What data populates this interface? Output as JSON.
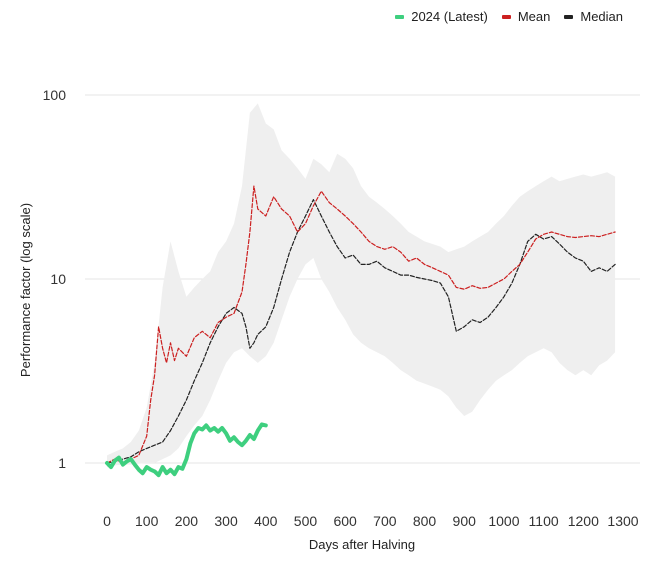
{
  "chart_data": {
    "type": "line",
    "xlabel": "Days after Halving",
    "ylabel": "Performance factor (log scale)",
    "y_scale": "log",
    "xlim": [
      0,
      1300
    ],
    "ylim": [
      0.55,
      130
    ],
    "x_ticks": [
      0,
      100,
      200,
      300,
      400,
      500,
      600,
      700,
      800,
      900,
      1000,
      1100,
      1200,
      1300
    ],
    "y_ticks": [
      1,
      10,
      100
    ],
    "y_tick_labels": [
      "1",
      "10",
      "100"
    ],
    "grid": "horizontal",
    "legend_position": "top-right",
    "series": [
      {
        "name": "2024 (Latest)",
        "color": "#3ecf7f",
        "style": "solid",
        "x": [
          0,
          10,
          20,
          30,
          40,
          50,
          60,
          70,
          80,
          90,
          100,
          110,
          120,
          130,
          140,
          150,
          160,
          170,
          180,
          190,
          200,
          210,
          220,
          230,
          240,
          250,
          260,
          270,
          280,
          290,
          300,
          310,
          320,
          330,
          340,
          350,
          360,
          370,
          380,
          390,
          400
        ],
        "values": [
          1.0,
          0.95,
          1.03,
          1.07,
          0.98,
          1.02,
          1.05,
          0.98,
          0.92,
          0.88,
          0.95,
          0.92,
          0.9,
          0.86,
          0.95,
          0.88,
          0.92,
          0.87,
          0.95,
          0.93,
          1.05,
          1.28,
          1.45,
          1.55,
          1.52,
          1.6,
          1.5,
          1.55,
          1.48,
          1.55,
          1.45,
          1.32,
          1.38,
          1.3,
          1.25,
          1.32,
          1.42,
          1.35,
          1.5,
          1.62,
          1.6
        ]
      },
      {
        "name": "Mean",
        "color": "#cc2020",
        "style": "dashed",
        "x": [
          0,
          20,
          40,
          60,
          80,
          100,
          110,
          120,
          130,
          140,
          150,
          160,
          170,
          180,
          200,
          220,
          240,
          260,
          280,
          300,
          320,
          340,
          350,
          360,
          370,
          380,
          400,
          420,
          440,
          460,
          480,
          500,
          520,
          540,
          560,
          580,
          600,
          620,
          640,
          660,
          680,
          700,
          720,
          740,
          760,
          780,
          800,
          820,
          840,
          860,
          880,
          900,
          920,
          940,
          960,
          980,
          1000,
          1020,
          1040,
          1060,
          1080,
          1100,
          1120,
          1140,
          1160,
          1180,
          1200,
          1220,
          1240,
          1260,
          1280
        ],
        "values": [
          1.0,
          1.05,
          1.0,
          1.05,
          1.1,
          1.4,
          2.2,
          3.0,
          5.5,
          4.2,
          3.5,
          4.5,
          3.6,
          4.2,
          3.8,
          4.8,
          5.2,
          4.8,
          5.8,
          6.2,
          6.5,
          8.5,
          12.0,
          18.0,
          32.0,
          24.0,
          22.0,
          28.0,
          24.0,
          22.0,
          18.0,
          20.0,
          25.0,
          30.0,
          26.0,
          24.0,
          22.0,
          20.0,
          18.0,
          16.0,
          15.0,
          14.5,
          15.0,
          14.0,
          12.5,
          13.0,
          12.0,
          11.5,
          11.0,
          10.5,
          9.0,
          8.8,
          9.2,
          8.9,
          9.0,
          9.5,
          10.0,
          11.0,
          12.0,
          14.0,
          16.5,
          17.5,
          18.0,
          17.5,
          17.0,
          16.8,
          17.0,
          17.2,
          17.0,
          17.5,
          18.0
        ]
      },
      {
        "name": "Median",
        "color": "#222222",
        "style": "dashed",
        "x": [
          0,
          20,
          40,
          60,
          80,
          100,
          120,
          140,
          160,
          180,
          200,
          220,
          240,
          260,
          280,
          300,
          320,
          340,
          350,
          360,
          370,
          380,
          400,
          420,
          440,
          460,
          480,
          500,
          520,
          540,
          560,
          580,
          600,
          620,
          640,
          660,
          680,
          700,
          720,
          740,
          760,
          780,
          800,
          820,
          840,
          860,
          880,
          900,
          920,
          940,
          960,
          980,
          1000,
          1020,
          1040,
          1060,
          1080,
          1100,
          1120,
          1140,
          1160,
          1180,
          1200,
          1220,
          1240,
          1260,
          1280
        ],
        "values": [
          1.0,
          1.02,
          1.05,
          1.08,
          1.15,
          1.2,
          1.25,
          1.3,
          1.5,
          1.8,
          2.2,
          2.8,
          3.5,
          4.5,
          5.5,
          6.5,
          7.0,
          6.5,
          5.5,
          4.2,
          4.5,
          5.0,
          5.5,
          7.0,
          10.0,
          14.0,
          18.0,
          22.0,
          27.0,
          22.0,
          18.0,
          15.0,
          13.0,
          13.5,
          12.0,
          12.0,
          12.5,
          11.5,
          11.0,
          10.5,
          10.5,
          10.2,
          10.0,
          9.8,
          9.5,
          8.0,
          5.2,
          5.5,
          6.0,
          5.8,
          6.2,
          7.0,
          8.0,
          9.5,
          12.0,
          16.0,
          17.5,
          16.5,
          17.0,
          15.5,
          14.0,
          13.0,
          12.5,
          11.0,
          11.5,
          11.0,
          12.0
        ]
      },
      {
        "name": "Range",
        "color": "#efefef",
        "style": "band",
        "x": [
          0,
          20,
          40,
          60,
          80,
          100,
          120,
          140,
          160,
          180,
          200,
          220,
          240,
          260,
          280,
          300,
          320,
          340,
          360,
          380,
          400,
          420,
          440,
          460,
          480,
          500,
          520,
          540,
          560,
          580,
          600,
          620,
          640,
          660,
          680,
          700,
          720,
          740,
          760,
          780,
          800,
          820,
          840,
          860,
          880,
          900,
          920,
          940,
          960,
          980,
          1000,
          1020,
          1040,
          1060,
          1080,
          1100,
          1120,
          1140,
          1160,
          1180,
          1200,
          1220,
          1240,
          1260,
          1280
        ],
        "lower": [
          0.95,
          0.97,
          0.98,
          0.98,
          0.99,
          1.0,
          1.0,
          1.05,
          1.1,
          1.2,
          1.4,
          1.6,
          1.8,
          2.2,
          2.8,
          3.5,
          4.0,
          4.2,
          3.8,
          3.5,
          3.8,
          4.5,
          6.0,
          8.0,
          10.0,
          12.0,
          13.0,
          10.0,
          8.5,
          7.0,
          6.0,
          5.0,
          4.5,
          4.2,
          4.0,
          3.8,
          3.5,
          3.2,
          3.0,
          2.8,
          2.7,
          2.6,
          2.5,
          2.3,
          2.0,
          1.8,
          1.9,
          2.2,
          2.5,
          2.8,
          3.0,
          3.2,
          3.5,
          3.8,
          4.0,
          4.2,
          4.0,
          3.5,
          3.2,
          3.0,
          3.2,
          3.0,
          3.4,
          3.6,
          4.0
        ],
        "upper": [
          1.1,
          1.15,
          1.2,
          1.3,
          1.5,
          2.0,
          3.5,
          9.0,
          16.0,
          11.0,
          8.0,
          9.0,
          10.0,
          11.0,
          14.0,
          16.0,
          20.0,
          32.0,
          80.0,
          90.0,
          70.0,
          65.0,
          50.0,
          45.0,
          40.0,
          35.0,
          45.0,
          42.0,
          38.0,
          48.0,
          45.0,
          40.0,
          32.0,
          28.0,
          26.0,
          24.0,
          22.0,
          20.0,
          18.0,
          17.0,
          16.0,
          15.5,
          15.0,
          14.0,
          14.5,
          15.0,
          16.0,
          17.0,
          18.0,
          20.0,
          22.0,
          25.0,
          28.0,
          30.0,
          32.0,
          34.0,
          36.0,
          34.0,
          35.0,
          36.0,
          37.0,
          36.0,
          37.0,
          38.0,
          36.0
        ]
      }
    ]
  }
}
